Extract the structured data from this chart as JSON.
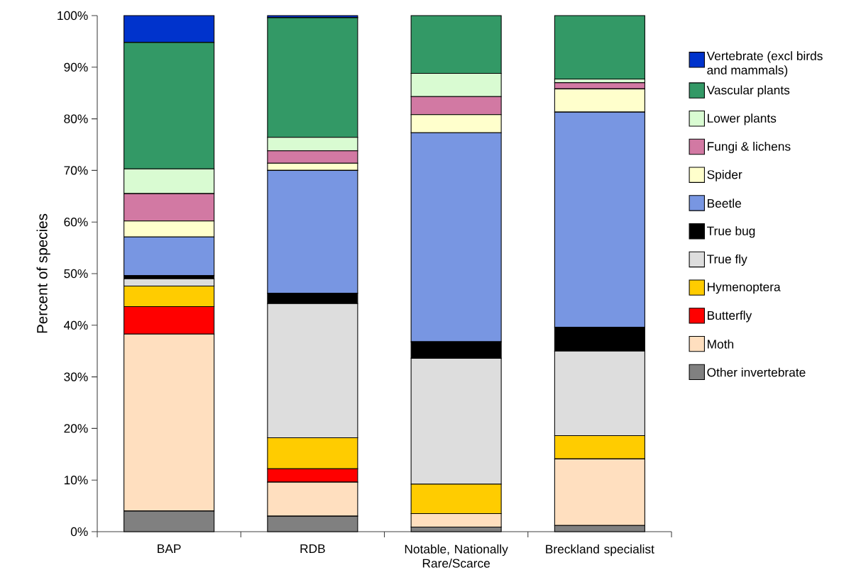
{
  "chart_data": {
    "type": "bar",
    "stacked": true,
    "ylabel": "Percent of species",
    "categories": [
      "BAP",
      "RDB",
      "Notable, Nationally Rare/Scarce",
      "Breckland specialist"
    ],
    "ylim": [
      0,
      100
    ],
    "yticks": [
      {
        "value": 0,
        "label": "0%"
      },
      {
        "value": 10,
        "label": "10%"
      },
      {
        "value": 20,
        "label": "20%"
      },
      {
        "value": 30,
        "label": "30%"
      },
      {
        "value": 40,
        "label": "40%"
      },
      {
        "value": 50,
        "label": "50%"
      },
      {
        "value": 60,
        "label": "60%"
      },
      {
        "value": 70,
        "label": "70%"
      },
      {
        "value": 80,
        "label": "80%"
      },
      {
        "value": 90,
        "label": "90%"
      },
      {
        "value": 100,
        "label": "100%"
      }
    ],
    "legend": "right",
    "grid": false,
    "series": [
      {
        "name": "Other invertebrate",
        "color": "#808080",
        "values": [
          4.0,
          3.0,
          0.9,
          1.2
        ]
      },
      {
        "name": "Moth",
        "color": "#ffdfbf",
        "values": [
          34.3,
          6.6,
          2.6,
          12.9
        ]
      },
      {
        "name": "Butterfly",
        "color": "#ff0000",
        "values": [
          5.3,
          2.6,
          0,
          0
        ]
      },
      {
        "name": "Hymenoptera",
        "color": "#ffcc00",
        "values": [
          4.0,
          6.0,
          5.7,
          4.5
        ]
      },
      {
        "name": "True fly",
        "color": "#dddddd",
        "values": [
          1.4,
          26.0,
          24.4,
          16.4
        ]
      },
      {
        "name": "True bug",
        "color": "#000000",
        "values": [
          0.6,
          2.0,
          3.2,
          4.6
        ]
      },
      {
        "name": "Beetle",
        "color": "#7896e2",
        "values": [
          7.5,
          23.8,
          40.5,
          41.7
        ]
      },
      {
        "name": "Spider",
        "color": "#ffffcc",
        "values": [
          3.1,
          1.4,
          3.5,
          4.5
        ]
      },
      {
        "name": "Fungi & lichens",
        "color": "#d279a3",
        "values": [
          5.3,
          2.4,
          3.5,
          1.2
        ]
      },
      {
        "name": "Lower plants",
        "color": "#d9fbd2",
        "values": [
          4.8,
          2.6,
          4.5,
          0.7
        ]
      },
      {
        "name": "Vascular plants",
        "color": "#339966",
        "values": [
          24.5,
          23.2,
          11.2,
          12.3
        ]
      },
      {
        "name": "Vertebrate (excl birds and mammals)",
        "color": "#0033cc",
        "values": [
          5.2,
          0.4,
          0,
          0
        ]
      }
    ]
  }
}
